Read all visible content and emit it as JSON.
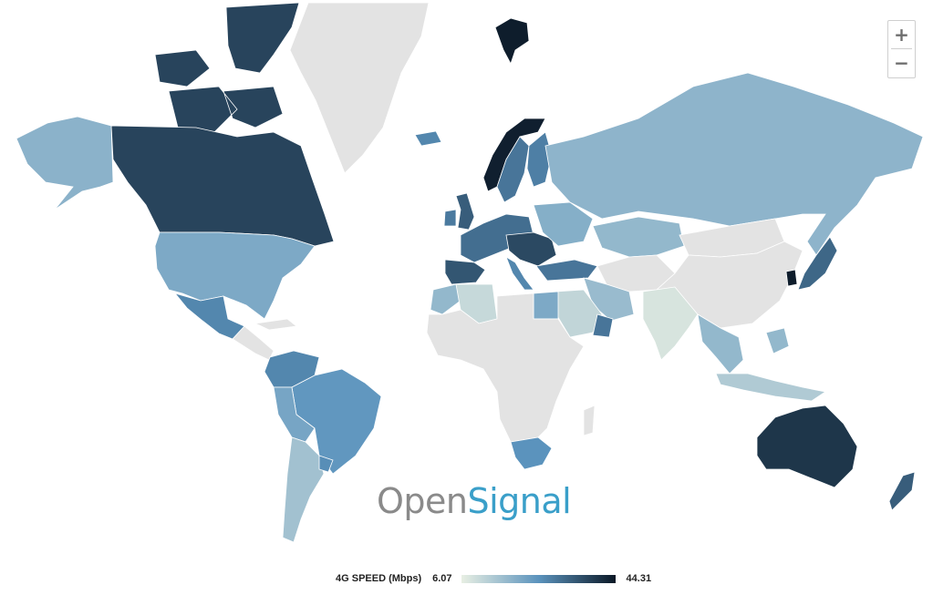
{
  "map": {
    "colors": {
      "no_data": "#e3e3e3",
      "scale_low": "#e8efe3",
      "scale_mid": "#5b93bd",
      "scale_high": "#0b1826"
    },
    "regions": [
      {
        "name": "Canada",
        "level": 0.82
      },
      {
        "name": "Canadian Arctic",
        "level": 0.82
      },
      {
        "name": "Alaska",
        "level": 0.33
      },
      {
        "name": "United States",
        "level": 0.38
      },
      {
        "name": "Mexico",
        "level": 0.55
      },
      {
        "name": "Greenland",
        "level": null
      },
      {
        "name": "Central America",
        "level": null
      },
      {
        "name": "Colombia",
        "level": 0.55
      },
      {
        "name": "Brazil",
        "level": 0.48
      },
      {
        "name": "Peru / Bolivia",
        "level": 0.4
      },
      {
        "name": "Chile / Argentina",
        "level": 0.25
      },
      {
        "name": "Uruguay",
        "level": 0.52
      },
      {
        "name": "Norway",
        "level": 0.97
      },
      {
        "name": "Sweden",
        "level": 0.62
      },
      {
        "name": "Finland",
        "level": 0.58
      },
      {
        "name": "Svalbard",
        "level": 0.98
      },
      {
        "name": "Iceland",
        "level": 0.55
      },
      {
        "name": "United Kingdom",
        "level": 0.72
      },
      {
        "name": "Ireland",
        "level": 0.6
      },
      {
        "name": "Western Europe",
        "level": 0.65
      },
      {
        "name": "Central Europe",
        "level": 0.8
      },
      {
        "name": "Spain / Portugal",
        "level": 0.75
      },
      {
        "name": "Italy",
        "level": 0.55
      },
      {
        "name": "Eastern Europe",
        "level": 0.35
      },
      {
        "name": "Turkey",
        "level": 0.62
      },
      {
        "name": "Russia",
        "level": 0.32
      },
      {
        "name": "Kazakhstan",
        "level": 0.3
      },
      {
        "name": "Central Asia",
        "level": null
      },
      {
        "name": "China",
        "level": null
      },
      {
        "name": "Mongolia",
        "level": null
      },
      {
        "name": "India",
        "level": 0.06
      },
      {
        "name": "Iran",
        "level": 0.28
      },
      {
        "name": "Saudi Arabia",
        "level": 0.14
      },
      {
        "name": "Oman",
        "level": 0.62
      },
      {
        "name": "Egypt",
        "level": 0.38
      },
      {
        "name": "Algeria",
        "level": 0.12
      },
      {
        "name": "Morocco",
        "level": 0.3
      },
      {
        "name": "Africa",
        "level": null
      },
      {
        "name": "South Africa",
        "level": 0.5
      },
      {
        "name": "Southeast Asia",
        "level": 0.3
      },
      {
        "name": "Indonesia",
        "level": 0.2
      },
      {
        "name": "Japan",
        "level": 0.68
      },
      {
        "name": "South Korea",
        "level": 0.98
      },
      {
        "name": "Australia",
        "level": 0.88
      },
      {
        "name": "New Zealand",
        "level": 0.72
      },
      {
        "name": "Madagascar",
        "level": null
      }
    ]
  },
  "zoom": {
    "in_label": "+",
    "out_label": "−"
  },
  "brand": {
    "part1": "Open",
    "part2": "Signal"
  },
  "legend": {
    "title": "4G SPEED (Mbps)",
    "min": "6.07",
    "max": "44.31"
  }
}
